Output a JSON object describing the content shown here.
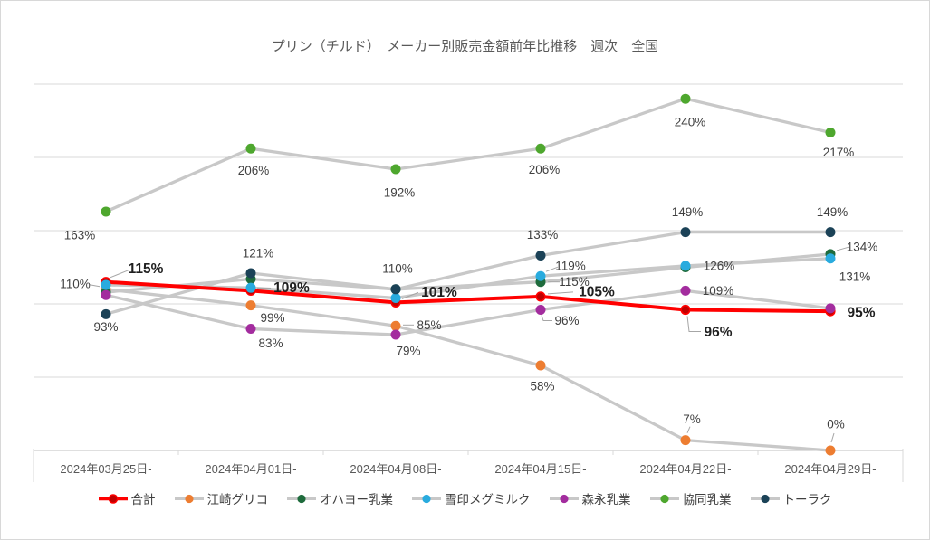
{
  "title": "プリン（チルド）　メーカー別販売金額前年比推移　週次　全国",
  "colors": {
    "grid": "#D9D9D9",
    "axis": "#BFBFBF",
    "gray_line": "#C8C8C8",
    "leader": "#A6A6A6",
    "label_text": "#404040",
    "label_text_bold": "#1F1F1F",
    "title_text": "#595959",
    "axis_text": "#595959"
  },
  "chart_data": {
    "type": "line",
    "title": "プリン（チルド）　メーカー別販売金額前年比推移　週次　全国",
    "categories": [
      "2024年03月25日-",
      "2024年04月01日-",
      "2024年04月08日-",
      "2024年04月15日-",
      "2024年04月22日-",
      "2024年04月29日-"
    ],
    "ylim": [
      0,
      265
    ],
    "gridlines": [
      50,
      100,
      150,
      200,
      250
    ],
    "grid": true,
    "legend_position": "bottom",
    "series": [
      {
        "id": "total",
        "name": "合計",
        "color": "#FF0000",
        "marker_color": "#C00000",
        "emphasis": true,
        "values": [
          115,
          109,
          101,
          105,
          96,
          95
        ],
        "labels": [
          {
            "text": "115%",
            "bold": true,
            "dx": 44,
            "dy": -14,
            "leader": [
              [
                5,
                -5
              ],
              [
                25,
                -13
              ]
            ]
          },
          {
            "text": "109%",
            "bold": true,
            "dx": 45,
            "dy": -3,
            "leader": [
              [
                7,
                -3
              ],
              [
                22,
                -3
              ]
            ]
          },
          {
            "text": "101%",
            "bold": true,
            "dx": 48,
            "dy": -11,
            "leader": [
              [
                7,
                -4
              ],
              [
                25,
                -11
              ]
            ]
          },
          {
            "text": "105%",
            "bold": true,
            "dx": 62,
            "dy": -5,
            "leader": [
              [
                8,
                -3
              ],
              [
                36,
                -5
              ]
            ]
          },
          {
            "text": "96%",
            "bold": true,
            "dx": 36,
            "dy": 25,
            "leader": [
              [
                2,
                7
              ],
              [
                4,
                24
              ],
              [
                17,
                24
              ]
            ]
          },
          {
            "text": "95%",
            "bold": true,
            "dx": 34,
            "dy": 2
          }
        ]
      },
      {
        "id": "ezaki-glico",
        "name": "江崎グリコ",
        "color": "#ED7D31",
        "values": [
          110,
          99,
          85,
          58,
          7,
          0
        ],
        "labels": [
          {
            "text": "110%",
            "dx": -34,
            "dy": -6,
            "leader": [
              [
                -7,
                -3
              ],
              [
                -18,
                -5
              ]
            ]
          },
          {
            "text": "99%",
            "dx": 24,
            "dy": 14
          },
          {
            "text": "85%",
            "dx": 37,
            "dy": -1,
            "leader": [
              [
                8,
                -1
              ],
              [
                20,
                -1
              ]
            ]
          },
          {
            "text": "58%",
            "dx": 2,
            "dy": 23
          },
          {
            "text": "7%",
            "dx": 7,
            "dy": -23,
            "leader": [
              [
                2,
                -8
              ],
              [
                5,
                -15
              ]
            ]
          },
          {
            "text": "0%",
            "dx": 6,
            "dy": -29,
            "leader": [
              [
                1,
                -9
              ],
              [
                4,
                -19
              ]
            ]
          }
        ]
      },
      {
        "id": "ohayo-dairy",
        "name": "オハヨー乳業",
        "color": "#1E6B3C",
        "values": [
          108,
          117,
          110,
          115,
          125,
          134
        ],
        "labels": [
          null,
          null,
          null,
          {
            "text": "115%",
            "dx": 37,
            "dy": 0,
            "leader": [
              [
                8,
                0
              ],
              [
                21,
                0
              ]
            ]
          },
          null,
          {
            "text": "134%",
            "dx": 35,
            "dy": -8,
            "leader": [
              [
                7,
                -4
              ],
              [
                21,
                -8
              ]
            ]
          }
        ]
      },
      {
        "id": "megmilk-snow",
        "name": "雪印メグミルク",
        "color": "#29ABDE",
        "values": [
          113,
          111,
          104,
          119,
          126,
          131
        ],
        "labels": [
          null,
          null,
          null,
          {
            "text": "119%",
            "dx": 33,
            "dy": -11,
            "leader": [
              [
                6,
                -5
              ],
              [
                19,
                -10
              ]
            ]
          },
          {
            "text": "126%",
            "dx": 37,
            "dy": 0
          },
          {
            "text": "131%",
            "dx": 27,
            "dy": 20
          }
        ]
      },
      {
        "id": "morinaga",
        "name": "森永乳業",
        "color": "#A32C9E",
        "values": [
          106,
          83,
          79,
          96,
          109,
          97
        ],
        "labels": [
          null,
          {
            "text": "83%",
            "dx": 22,
            "dy": 16
          },
          {
            "text": "79%",
            "dx": 14,
            "dy": 18
          },
          {
            "text": "96%",
            "dx": 29,
            "dy": 12,
            "leader": [
              [
                1,
                6
              ],
              [
                3,
                12
              ],
              [
                13,
                12
              ]
            ]
          },
          {
            "text": "109%",
            "dx": 36,
            "dy": 0
          },
          null
        ]
      },
      {
        "id": "kyodo-dairy",
        "name": "協同乳業",
        "color": "#4EA72E",
        "values": [
          163,
          206,
          192,
          206,
          240,
          217
        ],
        "labels": [
          {
            "text": "163%",
            "dx": -29,
            "dy": 26
          },
          {
            "text": "206%",
            "dx": 3,
            "dy": 24
          },
          {
            "text": "192%",
            "dx": 4,
            "dy": 26
          },
          {
            "text": "206%",
            "dx": 4,
            "dy": 23
          },
          {
            "text": "240%",
            "dx": 5,
            "dy": 26
          },
          {
            "text": "217%",
            "dx": 9,
            "dy": 22
          }
        ]
      },
      {
        "id": "toraku",
        "name": "トーラク",
        "color": "#1B4257",
        "values": [
          93,
          121,
          110,
          133,
          149,
          149
        ],
        "labels": [
          {
            "text": "93%",
            "dx": 0,
            "dy": 14
          },
          {
            "text": "121%",
            "dx": 8,
            "dy": -22
          },
          {
            "text": "110%",
            "dx": 2,
            "dy": -23
          },
          {
            "text": "133%",
            "dx": 2,
            "dy": -23
          },
          {
            "text": "149%",
            "dx": 2,
            "dy": -22
          },
          {
            "text": "149%",
            "dx": 2,
            "dy": -22
          }
        ]
      }
    ]
  }
}
